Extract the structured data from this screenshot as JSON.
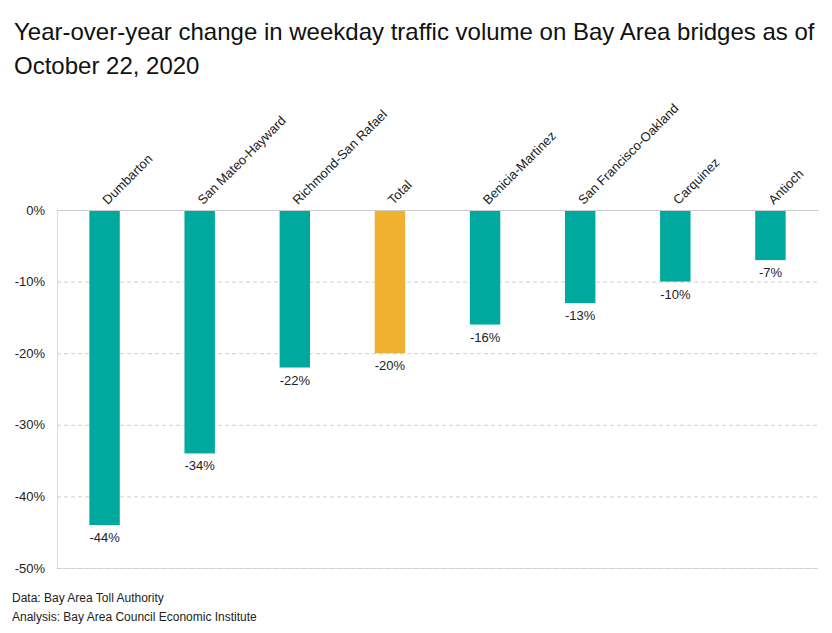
{
  "chart_data": {
    "type": "bar",
    "title": "Year-over-year change in weekday traffic volume on Bay Area bridges as of October 22, 2020",
    "categories": [
      "Dumbarton",
      "San Mateo-Hayward",
      "Richmond-San Rafael",
      "Total",
      "Benicia-Martinez",
      "San Francisco-Oakland",
      "Carquinez",
      "Antioch"
    ],
    "values": [
      -44,
      -34,
      -22,
      -20,
      -16,
      -13,
      -10,
      -7
    ],
    "value_labels": [
      "-44%",
      "-34%",
      "-22%",
      "-20%",
      "-16%",
      "-13%",
      "-10%",
      "-7%"
    ],
    "colors": [
      "#00a99d",
      "#00a99d",
      "#00a99d",
      "#f0b030",
      "#00a99d",
      "#00a99d",
      "#00a99d",
      "#00a99d"
    ],
    "ylim": [
      -50,
      0
    ],
    "yticks": [
      {
        "value": 0,
        "label": "0%"
      },
      {
        "value": -10,
        "label": "-10%"
      },
      {
        "value": -20,
        "label": "-20%"
      },
      {
        "value": -30,
        "label": "-30%"
      },
      {
        "value": -40,
        "label": "-40%"
      },
      {
        "value": -50,
        "label": "-50%"
      }
    ],
    "grid": true,
    "data_labels": true,
    "notes": [
      "Data: Bay Area Toll Authority",
      "Analysis: Bay Area Council Economic Institute"
    ]
  }
}
